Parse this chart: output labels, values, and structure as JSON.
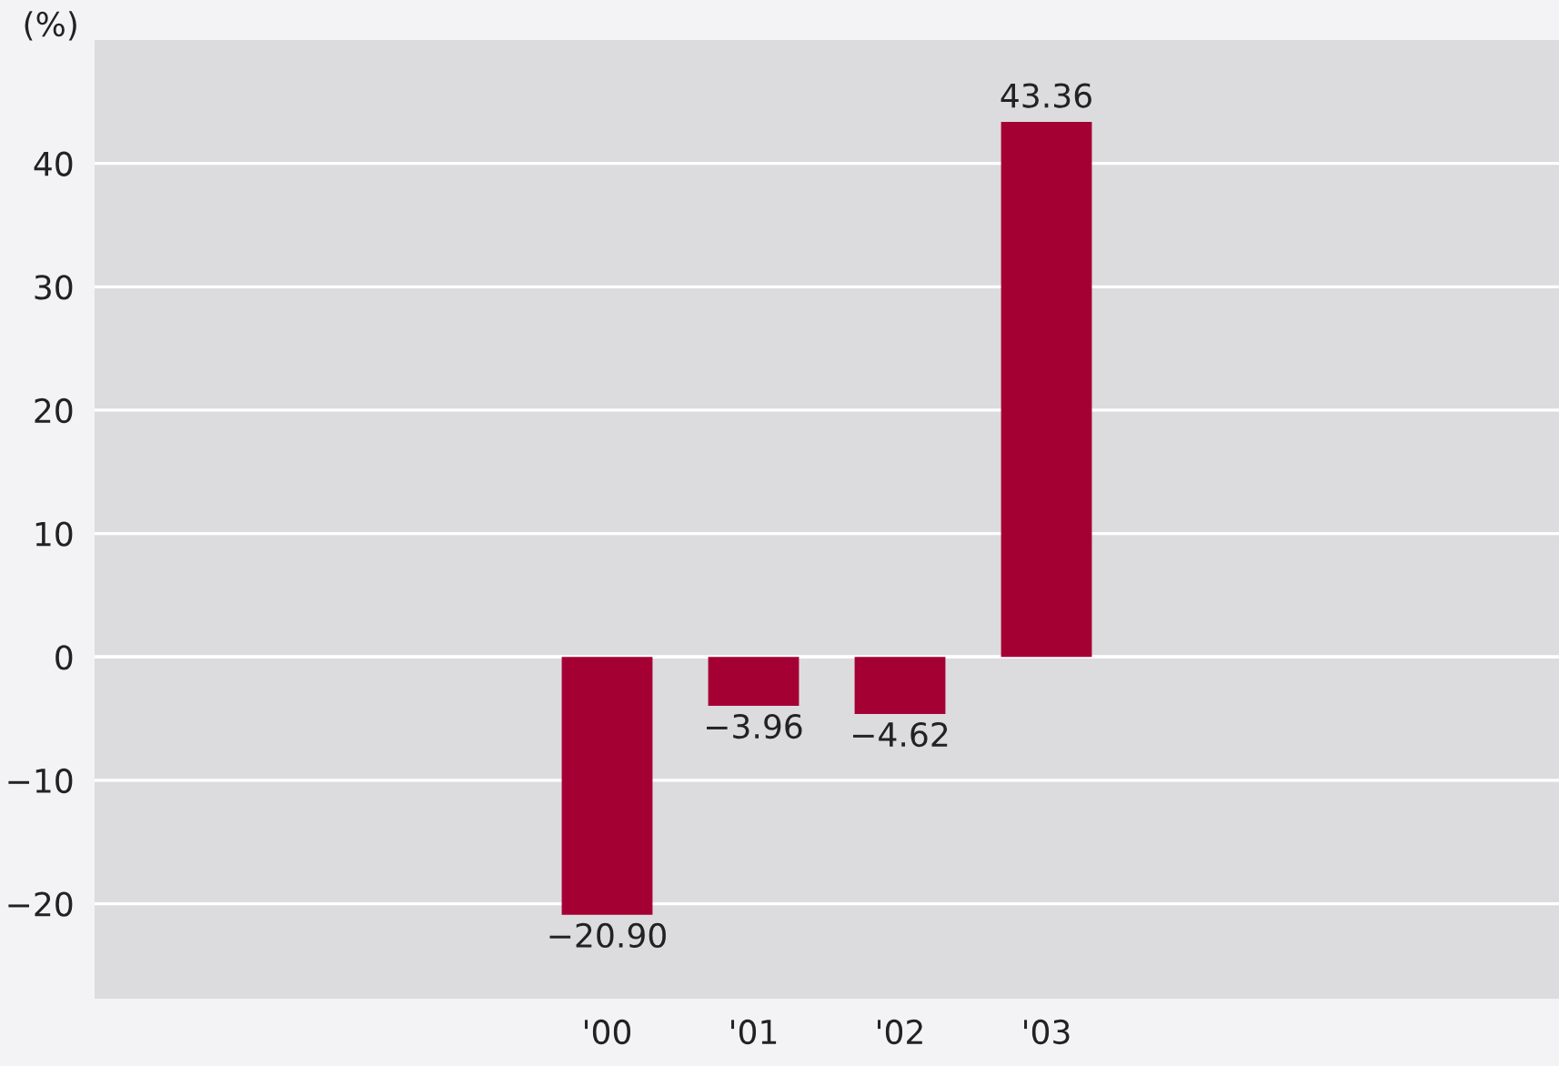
{
  "chart_data": {
    "type": "bar",
    "ylabel": "(%)",
    "categories": [
      null,
      null,
      null,
      "'00",
      "'01",
      "'02",
      "'03",
      null,
      null,
      null
    ],
    "values": [
      null,
      null,
      null,
      -20.9,
      -3.96,
      -4.62,
      43.36,
      null,
      null,
      null
    ],
    "value_labels": [
      null,
      null,
      null,
      "−20.90",
      "−3.96",
      "−4.62",
      "43.36",
      null,
      null,
      null
    ],
    "color": "#a50034",
    "ylim": [
      -27.7,
      50
    ],
    "yticks": [
      {
        "value": -20,
        "label": "−20"
      },
      {
        "value": -10,
        "label": "−10"
      },
      0,
      10,
      20,
      30,
      40
    ],
    "grid": "y"
  }
}
